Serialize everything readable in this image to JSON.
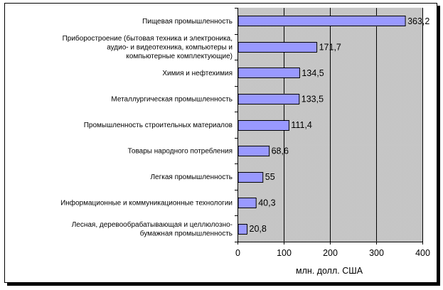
{
  "chart_data": {
    "type": "bar",
    "orientation": "horizontal",
    "categories": [
      [
        "Пищевая промышленность"
      ],
      [
        "Приборостроение (бытовая техника и электроника,",
        "аудио- и видеотехника, компьютеры и",
        "компьютерные комплектующие)"
      ],
      [
        "Химия и нефтехимия"
      ],
      [
        "Металлургическая промышленность"
      ],
      [
        "Промышленность строительных материалов"
      ],
      [
        "Товары народного потребления"
      ],
      [
        "Легкая промышленность"
      ],
      [
        "Информационные и коммуникационные технологии"
      ],
      [
        "Лесная, деревообрабатывающая и целлюлозно-",
        "бумажная промышленность"
      ]
    ],
    "values": [
      363.2,
      171.7,
      134.5,
      133.5,
      111.4,
      68.6,
      55,
      40.3,
      20.8
    ],
    "value_labels": [
      "363,2",
      "171,7",
      "134,5",
      "133,5",
      "111,4",
      "68,6",
      "55",
      "40,3",
      "20,8"
    ],
    "xticks": [
      "0",
      "100",
      "200",
      "300",
      "400"
    ],
    "xlim": [
      0,
      400
    ],
    "xlabel": "млн. долл. США",
    "grid": "vertical",
    "colors": {
      "bar_fill": "#9999ff",
      "bar_stroke": "#000000",
      "plot_bg": "#c0c0c0",
      "gridline": "#000000"
    }
  }
}
